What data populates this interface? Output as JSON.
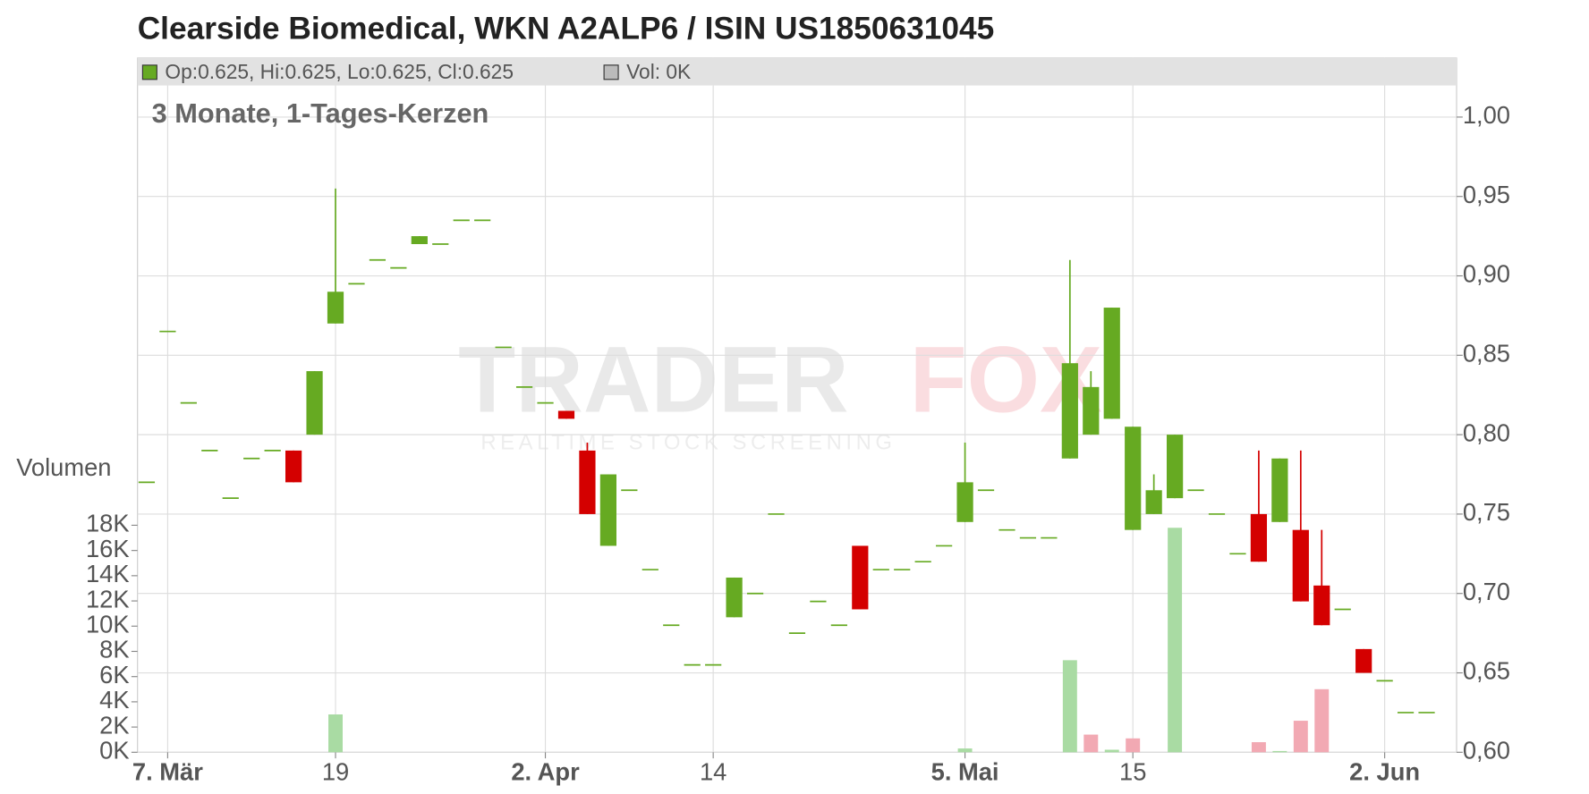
{
  "chart_data": {
    "type": "candlestick",
    "title": "Clearside Biomedical, WKN A2ALP6 / ISIN US1850631045",
    "subtitle": "3 Monate, 1-Tages-Kerzen",
    "ohlc_legend": "Op:0.625, Hi:0.625, Lo:0.625, Cl:0.625",
    "volume_legend": "Vol: 0K",
    "volume_axis_label": "Volumen",
    "watermark": {
      "brand_left": "TRADER",
      "brand_right": "FOX",
      "tagline": "REALTIME STOCK SCREENING"
    },
    "up_color": "#66aa22",
    "down_color": "#d40000",
    "volume_up_color": "#a9dba3",
    "volume_down_color": "#f2a9b3",
    "categories": [
      null,
      "7. Mär",
      null,
      null,
      null,
      null,
      null,
      null,
      null,
      "19",
      null,
      null,
      null,
      null,
      null,
      null,
      null,
      null,
      null,
      "2. Apr",
      null,
      null,
      null,
      null,
      null,
      null,
      null,
      "14",
      null,
      null,
      null,
      null,
      null,
      null,
      null,
      null,
      null,
      null,
      null,
      "5. Mai",
      null,
      null,
      null,
      null,
      null,
      null,
      null,
      "15",
      null,
      null,
      null,
      null,
      null,
      null,
      null,
      null,
      null,
      null,
      null,
      "2. Jun",
      null,
      null
    ],
    "open": [
      0.77,
      0.865,
      0.82,
      0.79,
      0.76,
      0.785,
      0.79,
      0.79,
      0.8,
      0.87,
      0.895,
      0.91,
      0.905,
      0.92,
      0.92,
      0.935,
      0.935,
      0.855,
      0.83,
      0.82,
      0.815,
      0.79,
      0.73,
      0.765,
      0.715,
      0.68,
      0.655,
      0.655,
      0.685,
      0.7,
      0.75,
      0.675,
      0.695,
      0.68,
      0.73,
      0.715,
      0.715,
      0.72,
      0.73,
      0.745,
      0.765,
      0.74,
      0.735,
      0.735,
      0.785,
      0.8,
      0.81,
      0.74,
      0.75,
      0.76,
      0.765,
      0.75,
      0.725,
      0.75,
      0.745,
      0.74,
      0.705,
      0.69,
      0.665,
      0.645,
      0.625,
      0.625
    ],
    "high": [
      0.77,
      0.865,
      0.82,
      0.79,
      0.76,
      0.785,
      0.79,
      0.79,
      0.84,
      0.955,
      0.895,
      0.91,
      0.905,
      0.925,
      0.92,
      0.935,
      0.935,
      0.855,
      0.83,
      0.82,
      0.815,
      0.795,
      0.775,
      0.765,
      0.715,
      0.68,
      0.655,
      0.655,
      0.71,
      0.7,
      0.75,
      0.675,
      0.695,
      0.68,
      0.73,
      0.715,
      0.715,
      0.72,
      0.73,
      0.795,
      0.765,
      0.74,
      0.735,
      0.735,
      0.91,
      0.84,
      0.88,
      0.805,
      0.775,
      0.8,
      0.765,
      0.75,
      0.725,
      0.79,
      0.785,
      0.79,
      0.74,
      0.69,
      0.665,
      0.645,
      0.625,
      0.625
    ],
    "low": [
      0.77,
      0.865,
      0.82,
      0.79,
      0.76,
      0.785,
      0.79,
      0.77,
      0.8,
      0.87,
      0.895,
      0.91,
      0.905,
      0.92,
      0.92,
      0.935,
      0.935,
      0.855,
      0.83,
      0.82,
      0.81,
      0.75,
      0.73,
      0.765,
      0.715,
      0.68,
      0.655,
      0.655,
      0.685,
      0.7,
      0.75,
      0.675,
      0.695,
      0.68,
      0.69,
      0.715,
      0.715,
      0.72,
      0.73,
      0.745,
      0.765,
      0.74,
      0.735,
      0.735,
      0.785,
      0.8,
      0.81,
      0.74,
      0.75,
      0.76,
      0.765,
      0.75,
      0.725,
      0.72,
      0.745,
      0.695,
      0.68,
      0.69,
      0.65,
      0.645,
      0.625,
      0.625
    ],
    "close": [
      0.77,
      0.865,
      0.82,
      0.79,
      0.76,
      0.785,
      0.79,
      0.77,
      0.84,
      0.89,
      0.895,
      0.91,
      0.905,
      0.925,
      0.92,
      0.935,
      0.935,
      0.855,
      0.83,
      0.82,
      0.81,
      0.75,
      0.775,
      0.765,
      0.715,
      0.68,
      0.655,
      0.655,
      0.71,
      0.7,
      0.75,
      0.675,
      0.695,
      0.68,
      0.69,
      0.715,
      0.715,
      0.72,
      0.73,
      0.77,
      0.765,
      0.74,
      0.735,
      0.735,
      0.845,
      0.83,
      0.88,
      0.805,
      0.765,
      0.8,
      0.765,
      0.75,
      0.725,
      0.72,
      0.785,
      0.695,
      0.68,
      0.69,
      0.65,
      0.645,
      0.625,
      0.625
    ],
    "volume": [
      0,
      0,
      0,
      0,
      0,
      0,
      0,
      0,
      0,
      3000,
      0,
      0,
      0,
      0,
      0,
      0,
      0,
      0,
      0,
      0,
      0,
      0,
      0,
      0,
      0,
      0,
      0,
      0,
      0,
      0,
      0,
      0,
      0,
      0,
      0,
      0,
      0,
      0,
      0,
      300,
      0,
      0,
      0,
      0,
      7300,
      1400,
      200,
      1100,
      0,
      17800,
      0,
      0,
      0,
      800,
      100,
      2500,
      5000,
      0,
      0,
      0,
      0,
      0
    ],
    "ylim": [
      0.6,
      1.0
    ],
    "yticks": [
      {
        "value": 0.6,
        "label": "0,60"
      },
      {
        "value": 0.65,
        "label": "0,65"
      },
      {
        "value": 0.7,
        "label": "0,70"
      },
      {
        "value": 0.75,
        "label": "0,75"
      },
      {
        "value": 0.8,
        "label": "0,80"
      },
      {
        "value": 0.85,
        "label": "0,85"
      },
      {
        "value": 0.9,
        "label": "0,90"
      },
      {
        "value": 0.95,
        "label": "0,95"
      },
      {
        "value": 1.0,
        "label": "1,00"
      }
    ],
    "y2lim": [
      0,
      18000
    ],
    "y2ticks": [
      {
        "value": 0,
        "label": "0K"
      },
      {
        "value": 2000,
        "label": "2K"
      },
      {
        "value": 4000,
        "label": "4K"
      },
      {
        "value": 6000,
        "label": "6K"
      },
      {
        "value": 8000,
        "label": "8K"
      },
      {
        "value": 10000,
        "label": "10K"
      },
      {
        "value": 12000,
        "label": "12K"
      },
      {
        "value": 14000,
        "label": "14K"
      },
      {
        "value": 16000,
        "label": "16K"
      },
      {
        "value": 18000,
        "label": "18K"
      }
    ],
    "grid": true
  }
}
